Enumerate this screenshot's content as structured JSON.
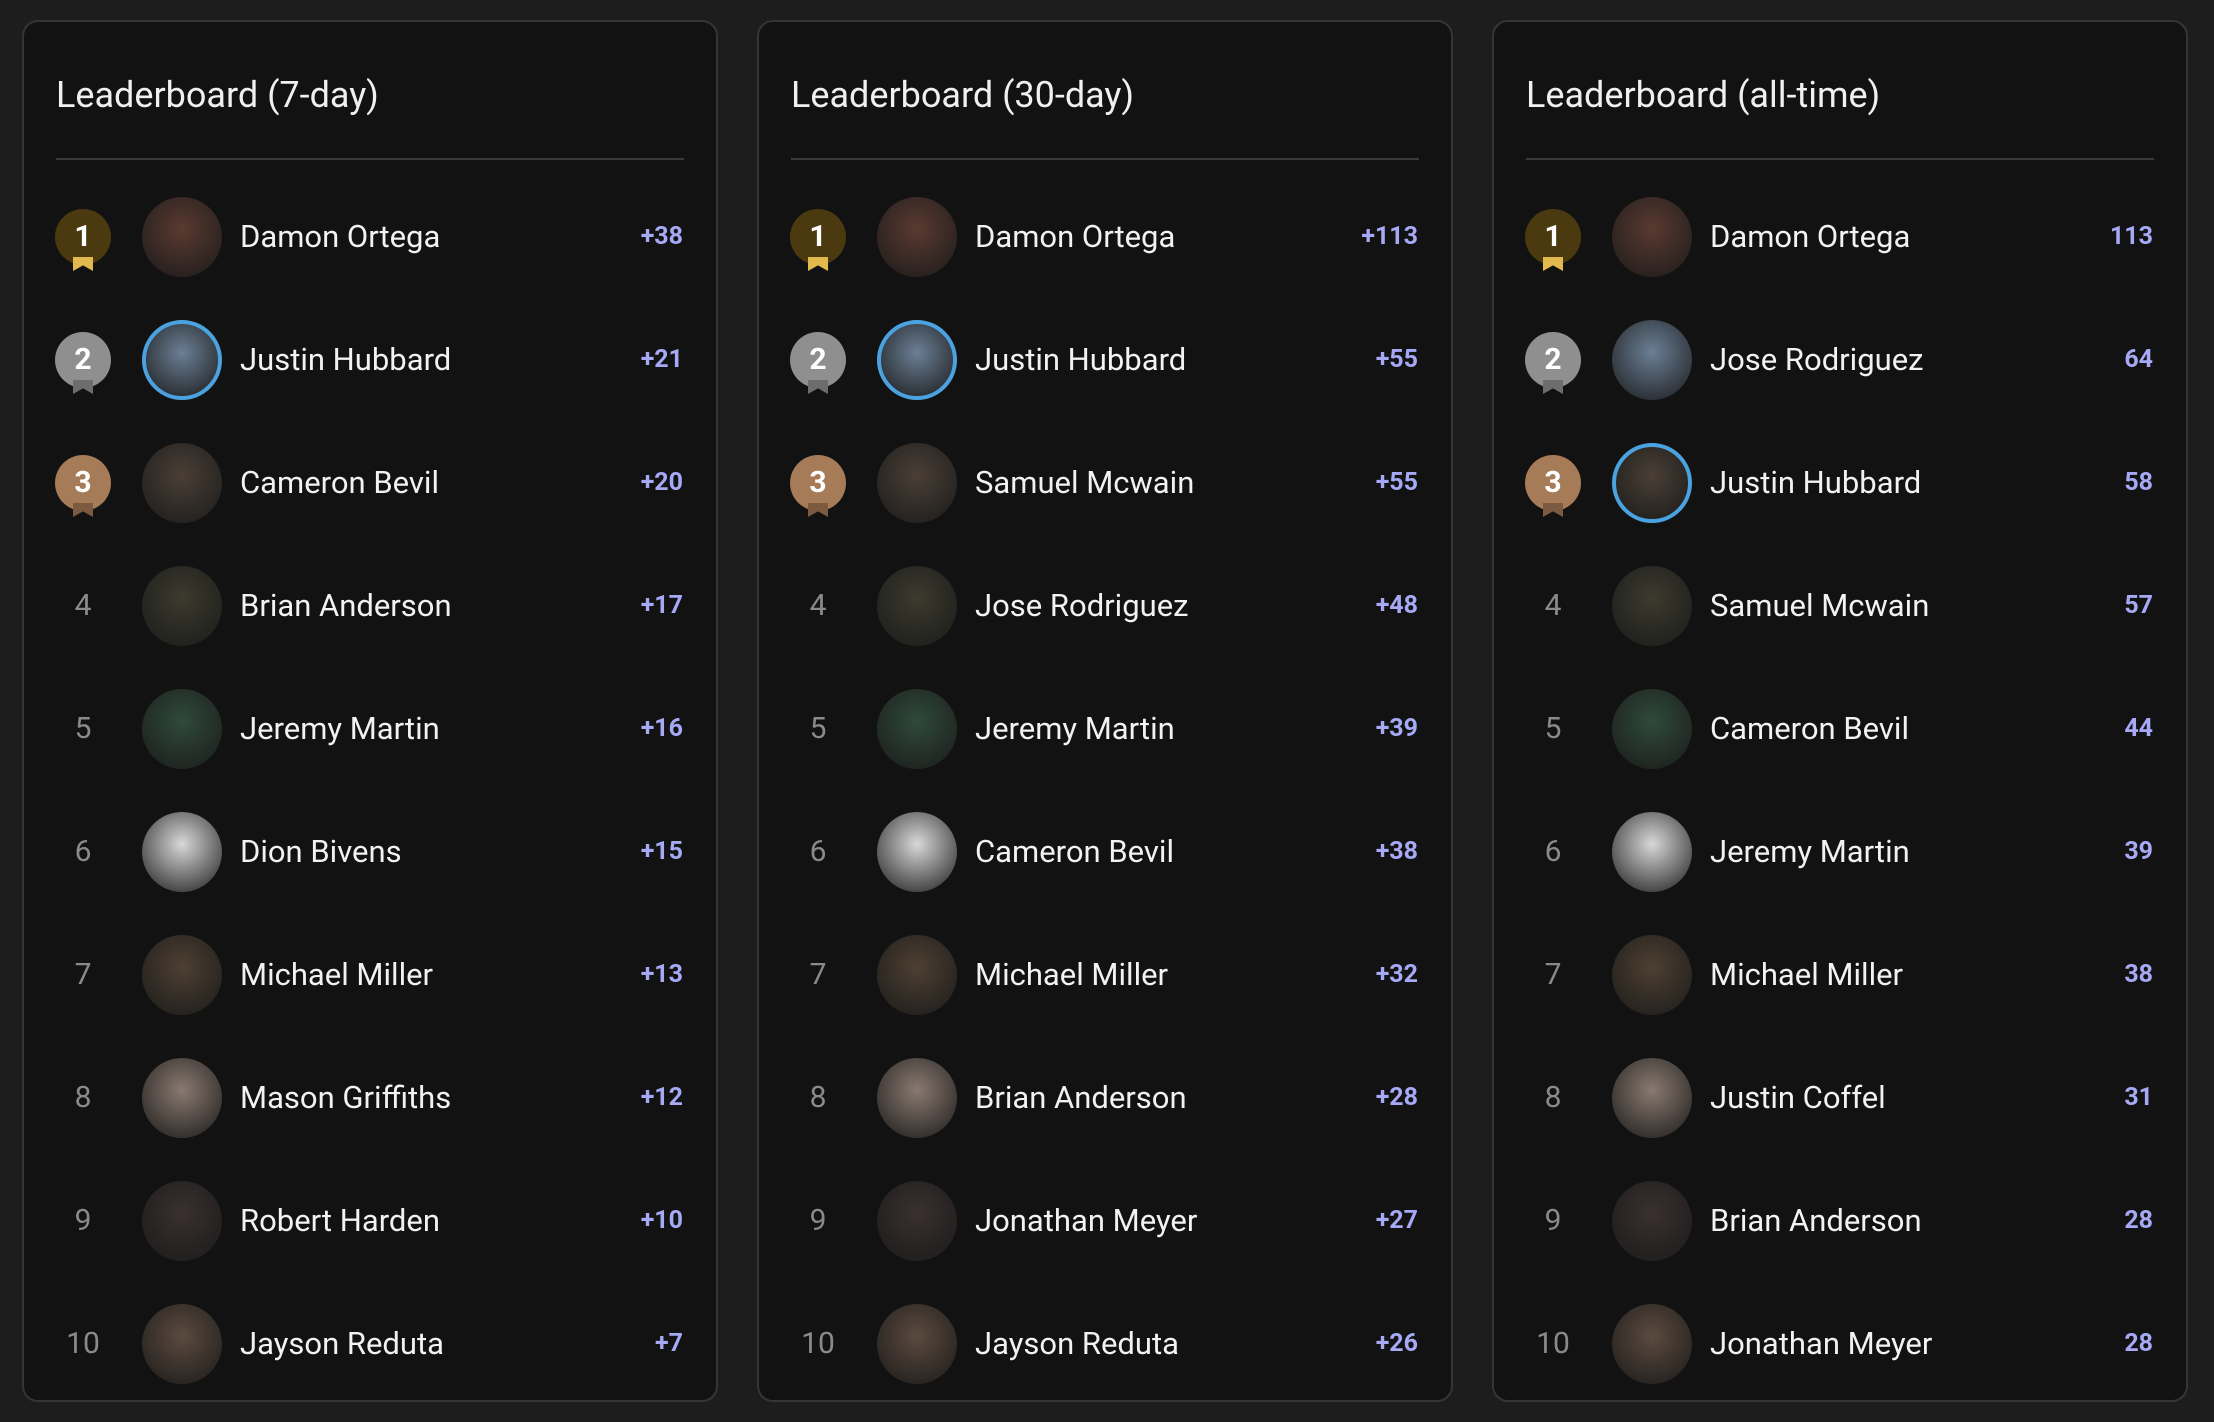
{
  "boards": [
    {
      "title": "Leaderboard (7-day)",
      "entries": [
        {
          "rank": 1,
          "name": "Damon Ortega",
          "score": "+38"
        },
        {
          "rank": 2,
          "name": "Justin Hubbard",
          "score": "+21"
        },
        {
          "rank": 3,
          "name": "Cameron Bevil",
          "score": "+20"
        },
        {
          "rank": 4,
          "name": "Brian Anderson",
          "score": "+17"
        },
        {
          "rank": 5,
          "name": "Jeremy Martin",
          "score": "+16"
        },
        {
          "rank": 6,
          "name": "Dion Bivens",
          "score": "+15"
        },
        {
          "rank": 7,
          "name": "Michael Miller",
          "score": "+13"
        },
        {
          "rank": 8,
          "name": "Mason Griffiths",
          "score": "+12"
        },
        {
          "rank": 9,
          "name": "Robert Harden",
          "score": "+10"
        },
        {
          "rank": 10,
          "name": "Jayson Reduta",
          "score": "+7"
        }
      ]
    },
    {
      "title": "Leaderboard (30-day)",
      "entries": [
        {
          "rank": 1,
          "name": "Damon Ortega",
          "score": "+113"
        },
        {
          "rank": 2,
          "name": "Justin Hubbard",
          "score": "+55"
        },
        {
          "rank": 3,
          "name": "Samuel Mcwain",
          "score": "+55"
        },
        {
          "rank": 4,
          "name": "Jose Rodriguez",
          "score": "+48"
        },
        {
          "rank": 5,
          "name": "Jeremy Martin",
          "score": "+39"
        },
        {
          "rank": 6,
          "name": "Cameron Bevil",
          "score": "+38"
        },
        {
          "rank": 7,
          "name": "Michael Miller",
          "score": "+32"
        },
        {
          "rank": 8,
          "name": "Brian Anderson",
          "score": "+28"
        },
        {
          "rank": 9,
          "name": "Jonathan Meyer",
          "score": "+27"
        },
        {
          "rank": 10,
          "name": "Jayson Reduta",
          "score": "+26"
        }
      ]
    },
    {
      "title": "Leaderboard (all-time)",
      "entries": [
        {
          "rank": 1,
          "name": "Damon Ortega",
          "score": 113
        },
        {
          "rank": 2,
          "name": "Jose Rodriguez",
          "score": 64
        },
        {
          "rank": 3,
          "name": "Justin Hubbard",
          "score": 58
        },
        {
          "rank": 4,
          "name": "Samuel Mcwain",
          "score": 57
        },
        {
          "rank": 5,
          "name": "Cameron Bevil",
          "score": 44
        },
        {
          "rank": 6,
          "name": "Jeremy Martin",
          "score": 39
        },
        {
          "rank": 7,
          "name": "Michael Miller",
          "score": 38
        },
        {
          "rank": 8,
          "name": "Justin Coffel",
          "score": 31
        },
        {
          "rank": 9,
          "name": "Brian Anderson",
          "score": 28
        },
        {
          "rank": 10,
          "name": "Jonathan Meyer",
          "score": 28
        }
      ]
    }
  ]
}
